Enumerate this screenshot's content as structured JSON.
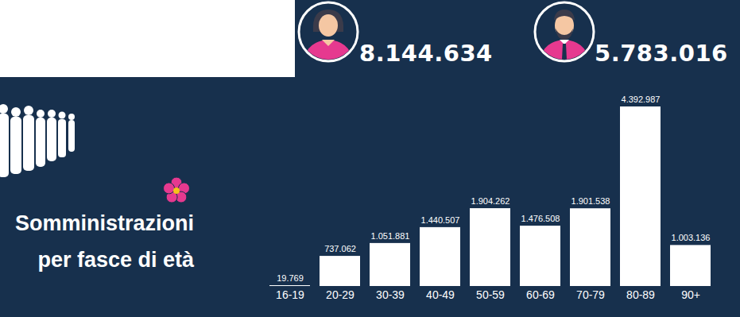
{
  "totals": {
    "values": [
      8144634,
      5783016
    ],
    "value_labels": [
      "8.144.634",
      "5.783.016"
    ]
  },
  "chart_data": {
    "type": "bar",
    "title": "Somministrazioni per fasce di età",
    "categories": [
      "16-19",
      "20-29",
      "30-39",
      "40-49",
      "50-59",
      "60-69",
      "70-79",
      "80-89",
      "90+"
    ],
    "values": [
      19769,
      737062,
      1051881,
      1440507,
      1904262,
      1476508,
      1901538,
      4392987,
      1003136
    ],
    "value_labels": [
      "19.769",
      "737.062",
      "1.051.881",
      "1.440.507",
      "1.904.262",
      "1.476.508",
      "1.901.538",
      "4.392.987",
      "1.003.136"
    ],
    "color": "#ffffff",
    "ylim": [
      0,
      4392987
    ],
    "data_labels": true,
    "tick_labels": "x"
  }
}
